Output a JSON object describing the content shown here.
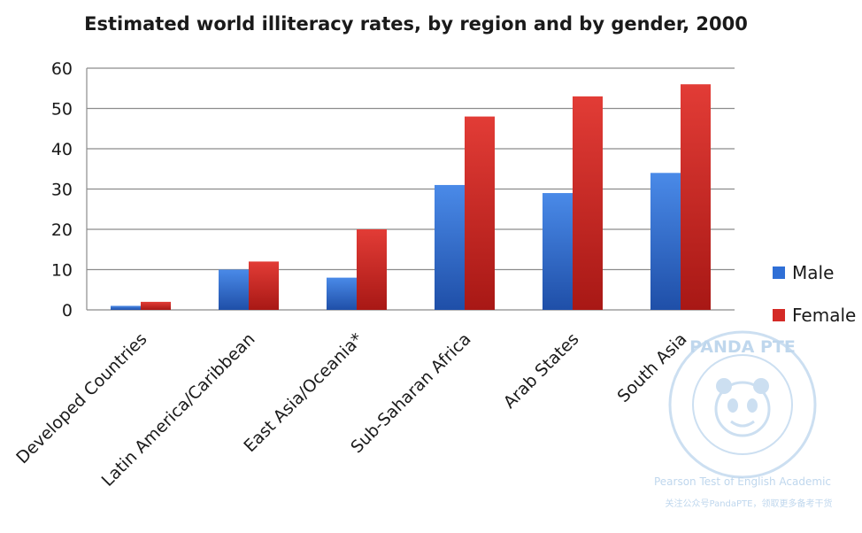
{
  "chart_data": {
    "type": "bar",
    "title": "Estimated world illiteracy rates, by region and by gender, 2000",
    "xlabel": "",
    "ylabel": "",
    "categories": [
      "Developed Countries",
      "Latin America/Caribbean",
      "East Asia/Oceania*",
      "Sub-Saharan Africa",
      "Arab States",
      "South Asia"
    ],
    "series": [
      {
        "name": "Male",
        "values": [
          1,
          10,
          8,
          31,
          29,
          34
        ],
        "color": "#2f6fd6"
      },
      {
        "name": "Female",
        "values": [
          2,
          12,
          20,
          48,
          53,
          56
        ],
        "color": "#d42a26"
      }
    ],
    "ylim": [
      0,
      60
    ],
    "yticks": [
      0,
      10,
      20,
      30,
      40,
      50,
      60
    ],
    "grid": true,
    "legend": "right"
  },
  "watermark": {
    "brand": "PANDA PTE",
    "tagline": "Pearson Test of English Academic",
    "footer": "关注公众号PandaPTE，领取更多备考干货",
    "color": "#b9d3ec"
  }
}
